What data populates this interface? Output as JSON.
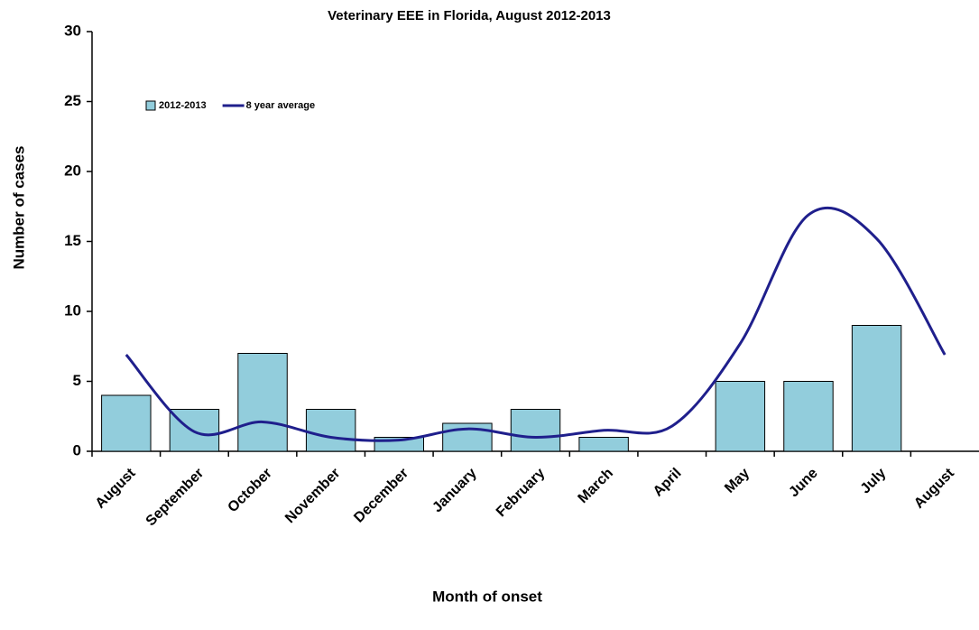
{
  "chart_data": {
    "type": "bar",
    "title": "Veterinary EEE in Florida, August 2012-2013",
    "x_label": "Month of onset",
    "y_label": "Number of cases",
    "categories": [
      "August",
      "September",
      "October",
      "November",
      "December",
      "January",
      "February",
      "March",
      "April",
      "May",
      "June",
      "July",
      "August"
    ],
    "series": [
      {
        "name": "2012-2013",
        "type": "bar",
        "color": "#92cddc",
        "values": [
          4,
          3,
          7,
          3,
          1,
          2,
          3,
          1,
          0,
          5,
          5,
          9,
          0
        ]
      },
      {
        "name": "8 year average",
        "type": "line",
        "color": "#1f1f8c",
        "values": [
          6.9,
          1.4,
          2.1,
          1.0,
          0.8,
          1.6,
          1.0,
          1.5,
          1.8,
          7.7,
          16.9,
          15.2,
          6.9
        ]
      }
    ],
    "ylim": [
      0,
      30
    ],
    "yticks": [
      0,
      5,
      10,
      15,
      20,
      25,
      30
    ],
    "grid": false,
    "legend": "top-left"
  }
}
